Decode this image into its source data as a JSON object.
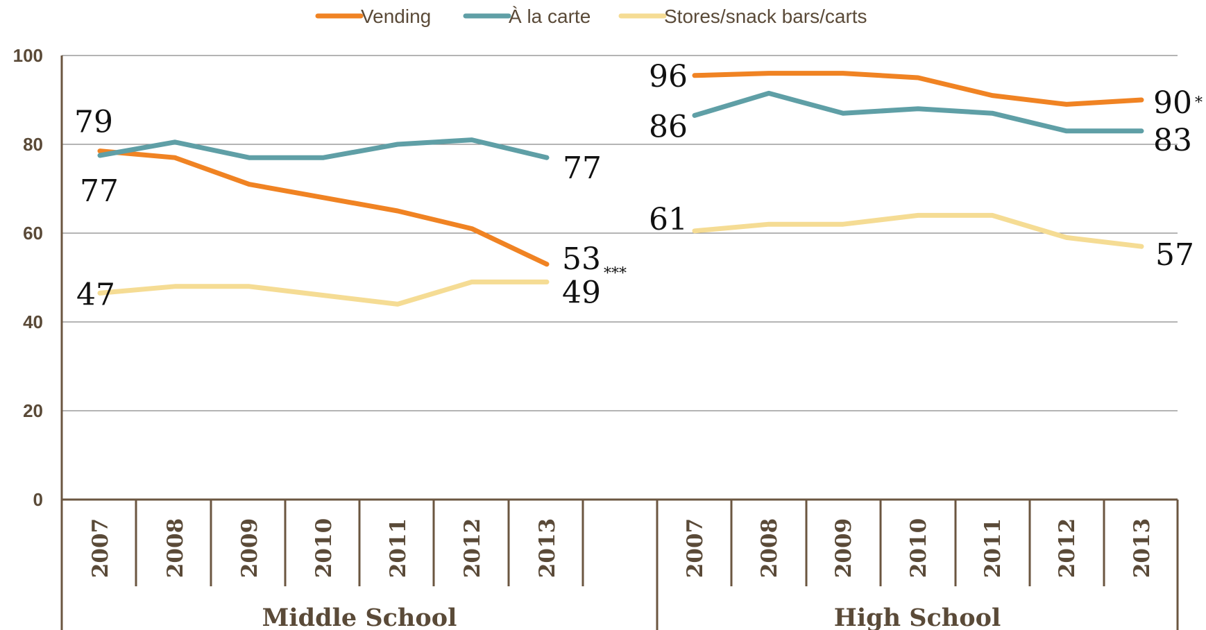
{
  "chart_data": {
    "type": "line",
    "title": "",
    "ylim": [
      0,
      100
    ],
    "yticks": [
      0,
      20,
      40,
      60,
      80,
      100
    ],
    "grid": true,
    "legend_position": "top-center",
    "groups": [
      {
        "name": "Middle School",
        "categories": [
          "2007",
          "2008",
          "2009",
          "2010",
          "2011",
          "2012",
          "2013"
        ],
        "series": [
          {
            "name": "Vending",
            "values": [
              78.5,
              77,
              71,
              68,
              65,
              61,
              53
            ]
          },
          {
            "name": "À la carte",
            "values": [
              77.5,
              80.5,
              77,
              77,
              80,
              81,
              77
            ]
          },
          {
            "name": "Stores/snack bars/carts",
            "values": [
              46.5,
              48,
              48,
              46,
              44,
              49,
              49
            ]
          }
        ],
        "labels": [
          {
            "series": "Vending",
            "index": 0,
            "text": "79",
            "sig": ""
          },
          {
            "series": "À la carte",
            "index": 0,
            "text": "77",
            "sig": ""
          },
          {
            "series": "Stores/snack bars/carts",
            "index": 0,
            "text": "47",
            "sig": ""
          },
          {
            "series": "À la carte",
            "index": 6,
            "text": "77",
            "sig": ""
          },
          {
            "series": "Vending",
            "index": 6,
            "text": "53",
            "sig": "***"
          },
          {
            "series": "Stores/snack bars/carts",
            "index": 6,
            "text": "49",
            "sig": ""
          }
        ]
      },
      {
        "name": "High School",
        "categories": [
          "2007",
          "2008",
          "2009",
          "2010",
          "2011",
          "2012",
          "2013"
        ],
        "series": [
          {
            "name": "Vending",
            "values": [
              95.5,
              96,
              96,
              95,
              91,
              89,
              90
            ]
          },
          {
            "name": "À la carte",
            "values": [
              86.5,
              91.5,
              87,
              88,
              87,
              83,
              83
            ]
          },
          {
            "name": "Stores/snack bars/carts",
            "values": [
              60.5,
              62,
              62,
              64,
              64,
              59,
              57
            ]
          }
        ],
        "labels": [
          {
            "series": "Vending",
            "index": 0,
            "text": "96",
            "sig": ""
          },
          {
            "series": "À la carte",
            "index": 0,
            "text": "86",
            "sig": ""
          },
          {
            "series": "Stores/snack bars/carts",
            "index": 0,
            "text": "61",
            "sig": ""
          },
          {
            "series": "Vending",
            "index": 6,
            "text": "90",
            "sig": "*"
          },
          {
            "series": "À la carte",
            "index": 6,
            "text": "83",
            "sig": ""
          },
          {
            "series": "Stores/snack bars/carts",
            "index": 6,
            "text": "57",
            "sig": ""
          }
        ]
      }
    ],
    "legend": [
      {
        "name": "Vending",
        "color": "#f08323"
      },
      {
        "name": "À la carte",
        "color": "#5f9fa6"
      },
      {
        "name": "Stores/snack bars/carts",
        "color": "#f5dc94"
      }
    ],
    "colors": {
      "text": "#5a4a38",
      "axis": "#6b5640",
      "grid": "#888888",
      "labels": "#111111"
    }
  }
}
